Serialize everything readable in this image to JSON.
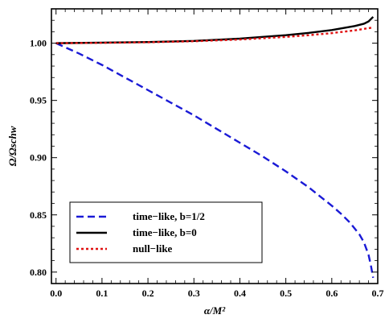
{
  "chart_data": {
    "type": "line",
    "xlabel": "α/M²",
    "ylabel": "Ω/Ωschw",
    "xlim": [
      -0.01,
      0.7
    ],
    "ylim": [
      0.79,
      1.03
    ],
    "x_ticks": [
      0.0,
      0.1,
      0.2,
      0.3,
      0.4,
      0.5,
      0.6,
      0.7
    ],
    "x_tick_labels": [
      "0.0",
      "0.1",
      "0.2",
      "0.3",
      "0.4",
      "0.5",
      "0.6",
      "0.7"
    ],
    "y_ticks": [
      0.8,
      0.85,
      0.9,
      0.95,
      1.0
    ],
    "y_tick_labels": [
      "0.80",
      "0.85",
      "0.90",
      "0.95",
      "1.00"
    ],
    "grid": false,
    "legend_position": "bottom-left",
    "series": [
      {
        "name": "time−like, b=1/2",
        "color": "#1a1ad6",
        "dash": "dashed",
        "x": [
          0.0,
          0.05,
          0.1,
          0.15,
          0.2,
          0.25,
          0.3,
          0.35,
          0.4,
          0.45,
          0.5,
          0.55,
          0.6,
          0.62,
          0.64,
          0.66,
          0.67,
          0.68,
          0.685,
          0.69
        ],
        "y": [
          1.0,
          0.991,
          0.981,
          0.97,
          0.959,
          0.948,
          0.937,
          0.925,
          0.913,
          0.901,
          0.888,
          0.874,
          0.858,
          0.851,
          0.843,
          0.833,
          0.826,
          0.815,
          0.806,
          0.795
        ]
      },
      {
        "name": "time−like, b=0",
        "color": "#000000",
        "dash": "solid",
        "x": [
          0.0,
          0.1,
          0.2,
          0.3,
          0.4,
          0.5,
          0.55,
          0.6,
          0.65,
          0.67,
          0.68,
          0.69
        ],
        "y": [
          1.0,
          1.0005,
          1.001,
          1.002,
          1.004,
          1.007,
          1.009,
          1.0115,
          1.015,
          1.017,
          1.019,
          1.023
        ]
      },
      {
        "name": "null−like",
        "color": "#e01010",
        "dash": "dotted",
        "x": [
          0.0,
          0.1,
          0.2,
          0.3,
          0.4,
          0.5,
          0.55,
          0.6,
          0.65,
          0.69
        ],
        "y": [
          1.0,
          1.0003,
          1.0008,
          1.0017,
          1.0032,
          1.0055,
          1.007,
          1.0088,
          1.0112,
          1.0138
        ]
      }
    ]
  }
}
